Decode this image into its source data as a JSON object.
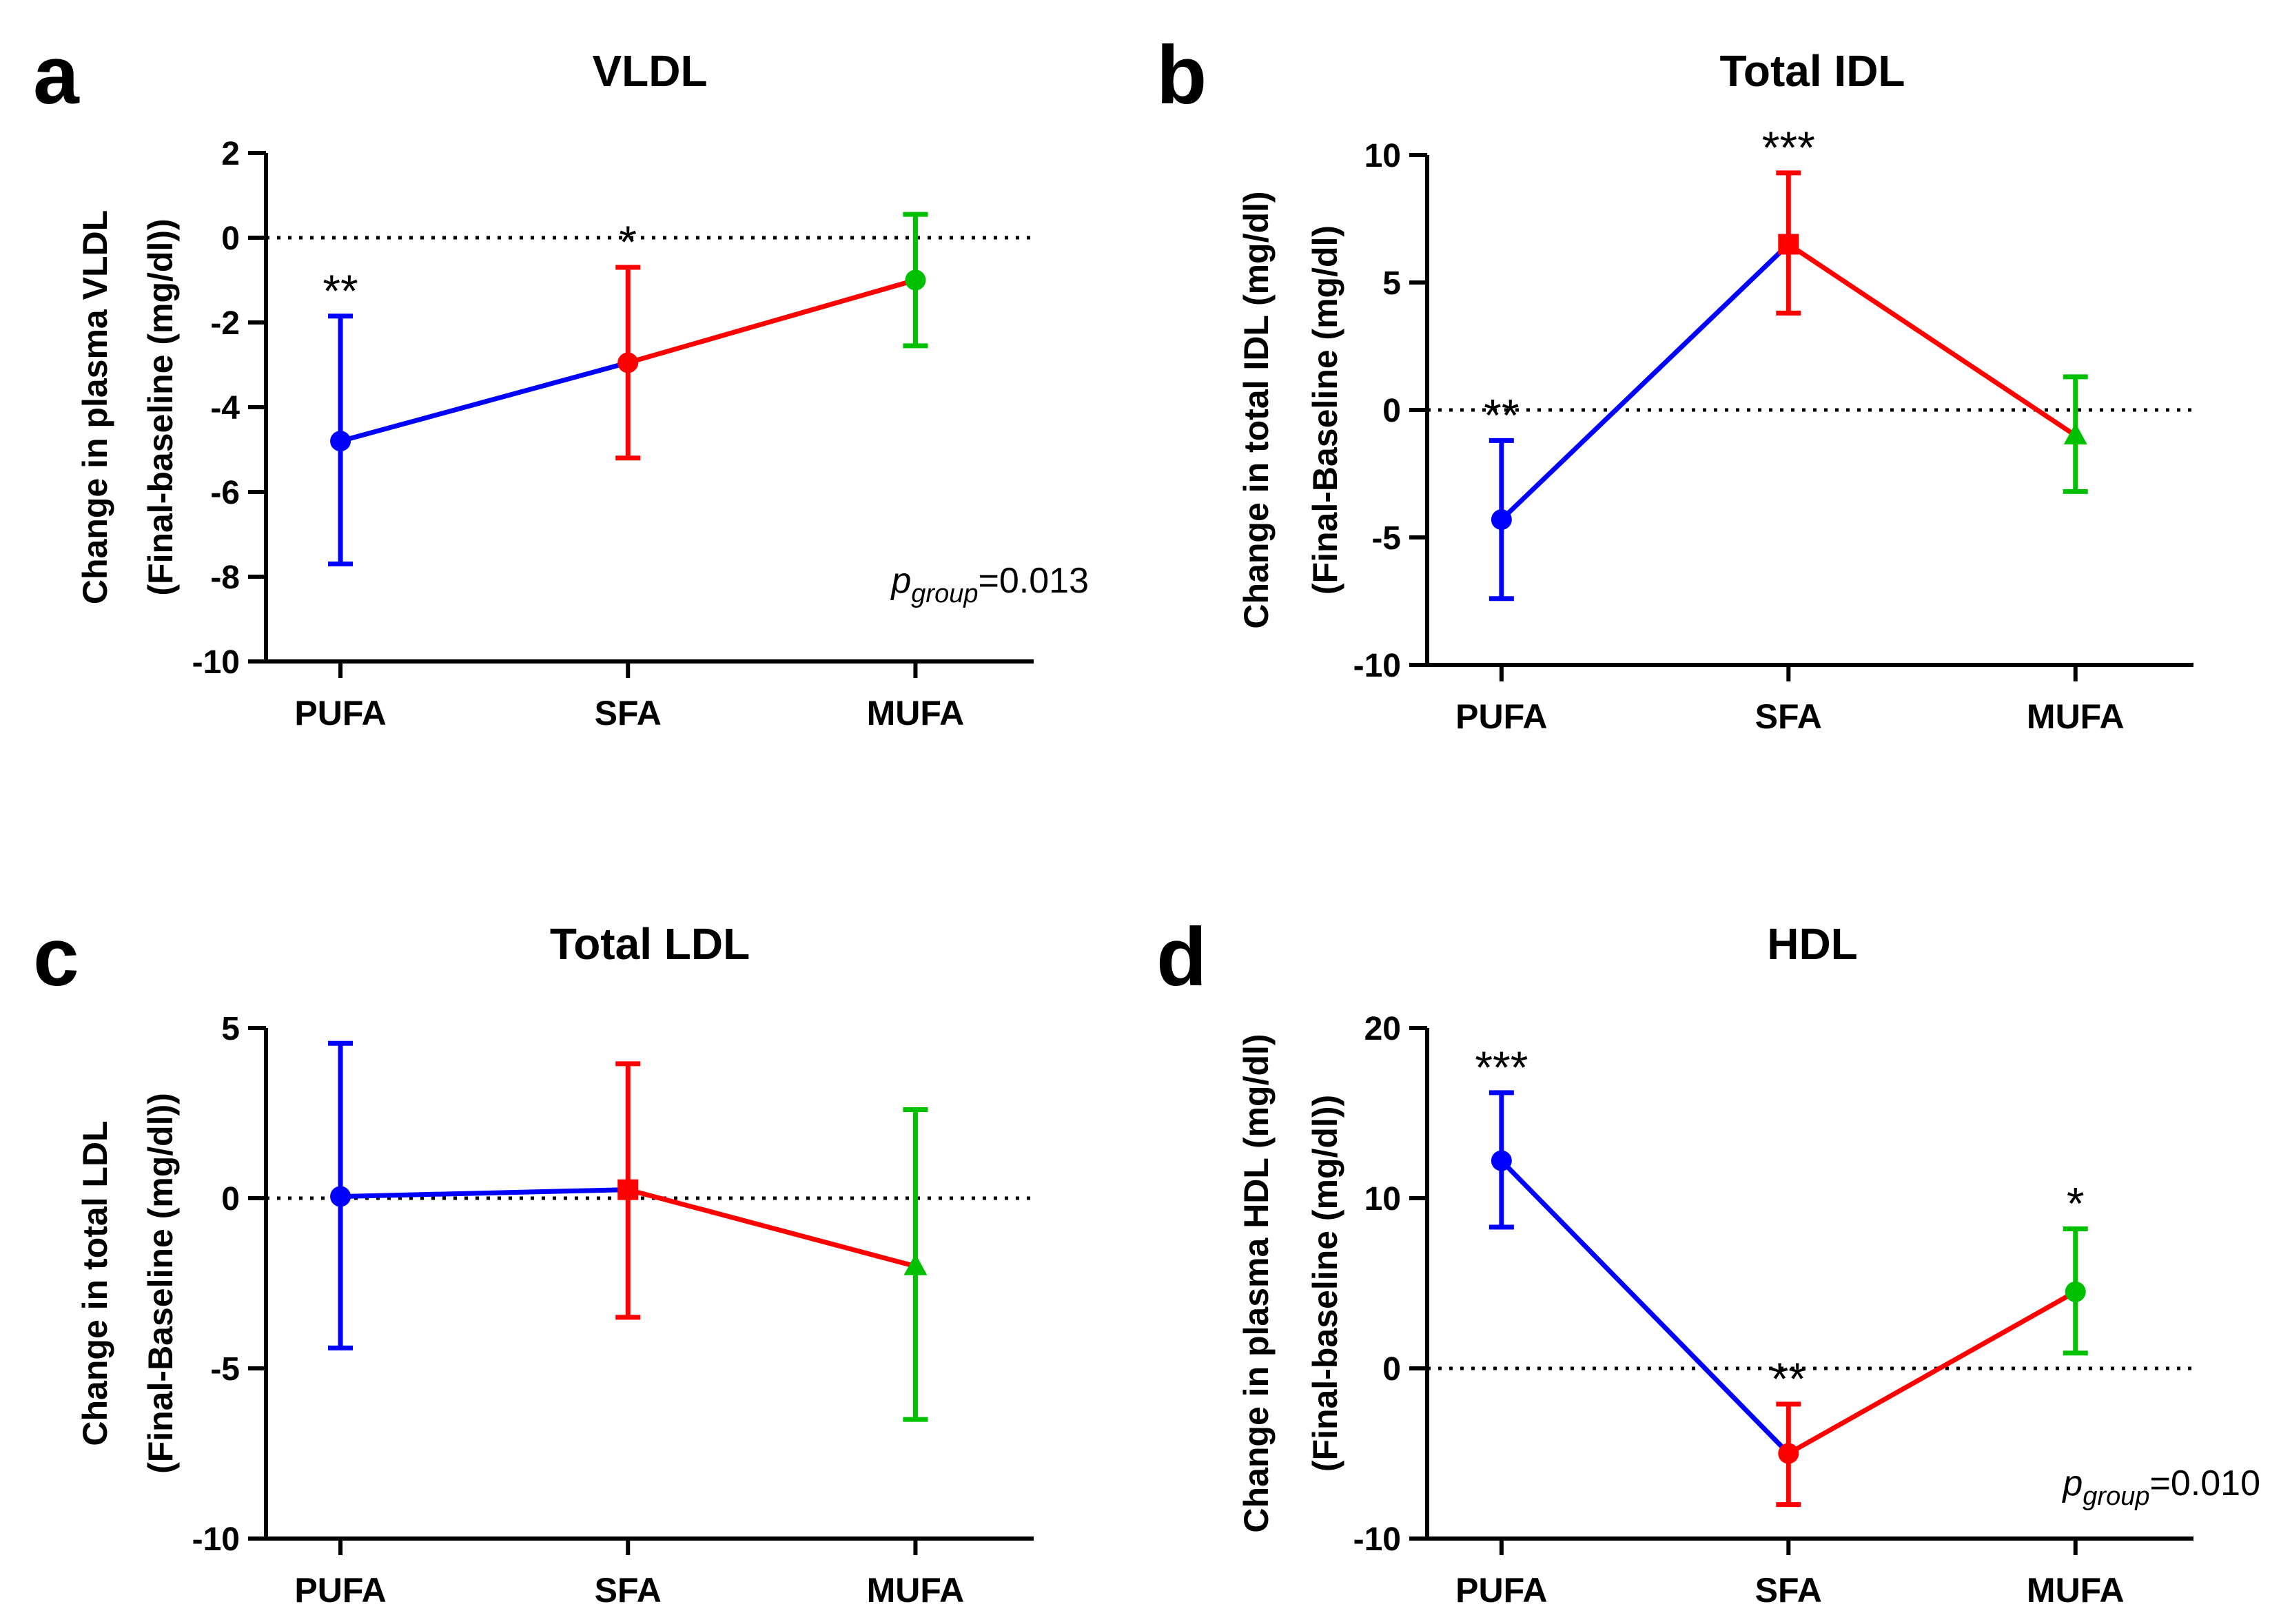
{
  "chart_data": [
    {
      "panel": "a",
      "type": "line",
      "title": "VLDL",
      "ylabel_lines": [
        "Change in plasma VLDL",
        "(Final-baseline (mg/dl))"
      ],
      "xlabel": "",
      "categories": [
        "PUFA",
        "SFA",
        "MUFA"
      ],
      "means": [
        -4.8,
        -2.95,
        -1.0
      ],
      "ci_low": [
        -7.7,
        -5.2,
        -2.55
      ],
      "ci_high": [
        -1.85,
        -0.7,
        0.55
      ],
      "colors": [
        "#0000ff",
        "#ff0000",
        "#00c000"
      ],
      "markers": [
        "circle",
        "circle",
        "circle"
      ],
      "significance": [
        "**",
        "*",
        ""
      ],
      "ylim": [
        -10,
        2
      ],
      "yticks": [
        2,
        0,
        -2,
        -4,
        -6,
        -8,
        -10
      ],
      "reference_line": 0,
      "annotation": {
        "p": "p",
        "sub": "group",
        "value": "=0.013"
      }
    },
    {
      "panel": "b",
      "type": "line",
      "title": "Total IDL",
      "ylabel_lines": [
        "Change in total  IDL (mg/dl)",
        "(Final-Baseline (mg/dl)"
      ],
      "xlabel": "",
      "categories": [
        "PUFA",
        "SFA",
        "MUFA"
      ],
      "means": [
        -4.3,
        6.5,
        -1.0
      ],
      "ci_low": [
        -7.4,
        3.8,
        -3.2
      ],
      "ci_high": [
        -1.2,
        9.3,
        1.3
      ],
      "colors": [
        "#0000ff",
        "#ff0000",
        "#00c000"
      ],
      "markers": [
        "circle",
        "square",
        "triangle"
      ],
      "significance": [
        "**",
        "***",
        ""
      ],
      "ylim": [
        -10,
        10
      ],
      "yticks": [
        10,
        5,
        0,
        -5,
        -10
      ],
      "reference_line": 0,
      "annotation": null
    },
    {
      "panel": "c",
      "type": "line",
      "title": "Total LDL",
      "ylabel_lines": [
        "Change in total  LDL",
        "(Final-Baseline (mg/dl))"
      ],
      "xlabel": "",
      "categories": [
        "PUFA",
        "SFA",
        "MUFA"
      ],
      "means": [
        0.05,
        0.25,
        -2.0
      ],
      "ci_low": [
        -4.4,
        -3.5,
        -6.5
      ],
      "ci_high": [
        4.55,
        3.95,
        2.6
      ],
      "colors": [
        "#0000ff",
        "#ff0000",
        "#00c000"
      ],
      "markers": [
        "circle",
        "square",
        "triangle"
      ],
      "significance": [
        "",
        "",
        ""
      ],
      "ylim": [
        -10,
        5
      ],
      "yticks": [
        5,
        0,
        -5,
        -10
      ],
      "reference_line": 0,
      "annotation": null
    },
    {
      "panel": "d",
      "type": "line",
      "title": "HDL",
      "ylabel_lines": [
        "Change in plasma  HDL (mg/dl)",
        "(Final-baseline (mg/dl))"
      ],
      "xlabel": "",
      "categories": [
        "PUFA",
        "SFA",
        "MUFA"
      ],
      "means": [
        12.2,
        -5.0,
        4.5
      ],
      "ci_low": [
        8.3,
        -8.0,
        0.9
      ],
      "ci_high": [
        16.2,
        -2.1,
        8.2
      ],
      "colors": [
        "#0000ff",
        "#ff0000",
        "#00c000"
      ],
      "markers": [
        "circle",
        "circle",
        "circle"
      ],
      "significance": [
        "***",
        "**",
        "*"
      ],
      "ylim": [
        -10,
        20
      ],
      "yticks": [
        20,
        10,
        0,
        -10
      ],
      "reference_line": 0,
      "annotation": {
        "p": "p",
        "sub": "group",
        "value": "=0.010"
      }
    }
  ]
}
